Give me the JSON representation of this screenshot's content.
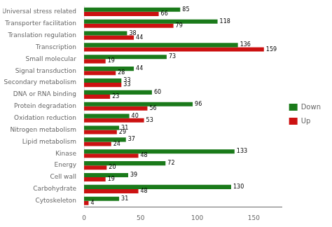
{
  "chart_data": {
    "type": "bar",
    "orientation": "horizontal",
    "categories": [
      "Cytoskeleton",
      "Carbohydrate",
      "Cell wall",
      "Energy",
      "Kinase",
      "Lipid metabolism",
      "Nitrogen metabolism",
      "Oxidation reduction",
      "Protein degradation",
      "DNA or RNA binding",
      "Secondary metabolism",
      "Signal transduction",
      "Small molecular",
      "Transcription",
      "Translation regulation",
      "Transporter facilitation",
      "Universal stress related"
    ],
    "series": [
      {
        "name": "Down",
        "color": "#1a7a1a",
        "values": [
          31,
          130,
          39,
          72,
          133,
          37,
          31,
          40,
          96,
          60,
          33,
          44,
          73,
          136,
          38,
          118,
          85
        ]
      },
      {
        "name": "Up",
        "color": "#cc1111",
        "values": [
          4,
          48,
          19,
          20,
          48,
          24,
          29,
          53,
          56,
          23,
          33,
          28,
          19,
          159,
          44,
          79,
          66
        ]
      }
    ],
    "xlim": [
      0,
      175
    ],
    "xticks": [
      0,
      50,
      100,
      150
    ],
    "grid": false,
    "legend": "right",
    "data_labels": true
  }
}
